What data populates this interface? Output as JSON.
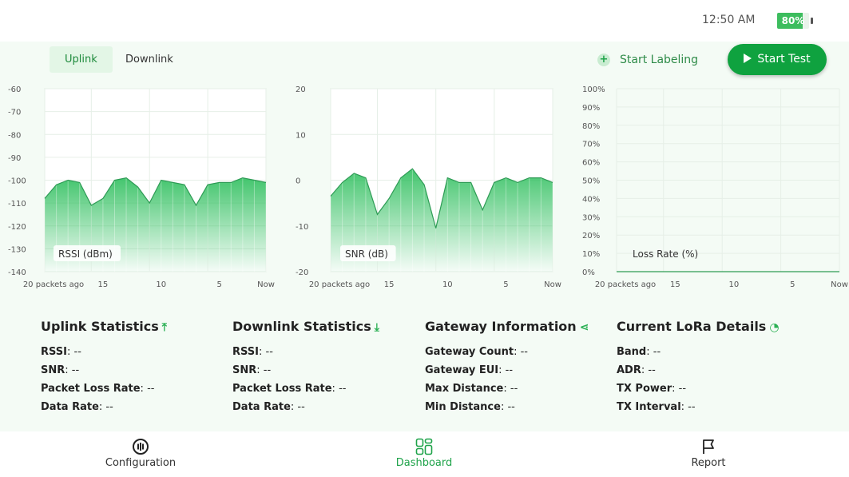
{
  "status_bar": {
    "time": "12:50 AM",
    "battery_label": "80%",
    "battery_level": 0.8
  },
  "tabs": [
    {
      "label": "Uplink",
      "active": true
    },
    {
      "label": "Downlink",
      "active": false
    }
  ],
  "actions": {
    "labeling_label": "Start Labeling",
    "start_test_label": "Start Test"
  },
  "colors": {
    "accent": "#0fa23f",
    "chart_line": "#2e9b55",
    "chart_fill": "#2fbf5e"
  },
  "chart_data": [
    {
      "type": "area",
      "title": "RSSI (dBm)",
      "ylim": [
        -140,
        -60
      ],
      "yticks": [
        "-60",
        "-70",
        "-80",
        "-90",
        "-100",
        "-110",
        "-120",
        "-130",
        "-140"
      ],
      "xtick_labels": [
        "20 packets ago",
        "15",
        "10",
        "5",
        "Now"
      ],
      "grid": true,
      "x": [
        1,
        2,
        3,
        4,
        5,
        6,
        7,
        8,
        9,
        10,
        11,
        12,
        13,
        14,
        15,
        16,
        17,
        18,
        19,
        20
      ],
      "values": [
        -108,
        -102,
        -100,
        -101,
        -111,
        -108,
        -100,
        -99,
        -103,
        -110,
        -100,
        -101,
        -102,
        -111,
        -102,
        -101,
        -101,
        -99,
        -100,
        -101
      ]
    },
    {
      "type": "area",
      "title": "SNR (dB)",
      "ylim": [
        -20,
        20
      ],
      "yticks": [
        "20",
        "10",
        "0",
        "-10",
        "-20"
      ],
      "xtick_labels": [
        "20 packets ago",
        "15",
        "10",
        "5",
        "Now"
      ],
      "grid": true,
      "x": [
        1,
        2,
        3,
        4,
        5,
        6,
        7,
        8,
        9,
        10,
        11,
        12,
        13,
        14,
        15,
        16,
        17,
        18,
        19,
        20
      ],
      "values": [
        -3.5,
        -0.5,
        1.5,
        0.5,
        -7.5,
        -4,
        0.5,
        2.5,
        -1,
        -10.5,
        0.5,
        -0.5,
        -0.5,
        -6.5,
        -0.5,
        0.5,
        -0.5,
        0.5,
        0.5,
        -0.5
      ]
    },
    {
      "type": "line",
      "title": "Loss Rate (%)",
      "ylim": [
        0,
        100
      ],
      "yticks": [
        "100%",
        "90%",
        "80%",
        "70%",
        "60%",
        "50%",
        "40%",
        "30%",
        "20%",
        "10%",
        "0%"
      ],
      "xtick_labels": [
        "20 packets ago",
        "15",
        "10",
        "5",
        "Now"
      ],
      "grid": true,
      "x": [
        1,
        20
      ],
      "values": [
        0,
        0
      ]
    }
  ],
  "stats": [
    {
      "title": "Uplink Statistics",
      "icon": "upload-icon",
      "glyph": "⤒",
      "rows": [
        {
          "k": "RSSI",
          "v": "--"
        },
        {
          "k": "SNR",
          "v": "--"
        },
        {
          "k": "Packet Loss Rate",
          "v": "--"
        },
        {
          "k": "Data Rate",
          "v": "--"
        }
      ]
    },
    {
      "title": "Downlink Statistics",
      "icon": "download-icon",
      "glyph": "⤓",
      "rows": [
        {
          "k": "RSSI",
          "v": "--"
        },
        {
          "k": "SNR",
          "v": "--"
        },
        {
          "k": "Packet Loss Rate",
          "v": "--"
        },
        {
          "k": "Data Rate",
          "v": "--"
        }
      ]
    },
    {
      "title": "Gateway Information",
      "icon": "share-nodes-icon",
      "glyph": "⋖",
      "rows": [
        {
          "k": "Gateway Count",
          "v": "--"
        },
        {
          "k": "Gateway EUI",
          "v": "--"
        },
        {
          "k": "Max Distance",
          "v": "--"
        },
        {
          "k": "Min Distance",
          "v": "--"
        }
      ]
    },
    {
      "title": "Current LoRa Details",
      "icon": "signal-waves-icon",
      "glyph": "◔",
      "rows": [
        {
          "k": "Band",
          "v": "--"
        },
        {
          "k": "ADR",
          "v": "--"
        },
        {
          "k": "TX Power",
          "v": "--"
        },
        {
          "k": "TX Interval",
          "v": "--"
        }
      ]
    }
  ],
  "nav": [
    {
      "label": "Configuration",
      "icon": "configuration-icon",
      "active": false
    },
    {
      "label": "Dashboard",
      "icon": "dashboard-grid-icon",
      "active": true
    },
    {
      "label": "Report",
      "icon": "flag-icon",
      "active": false
    }
  ]
}
